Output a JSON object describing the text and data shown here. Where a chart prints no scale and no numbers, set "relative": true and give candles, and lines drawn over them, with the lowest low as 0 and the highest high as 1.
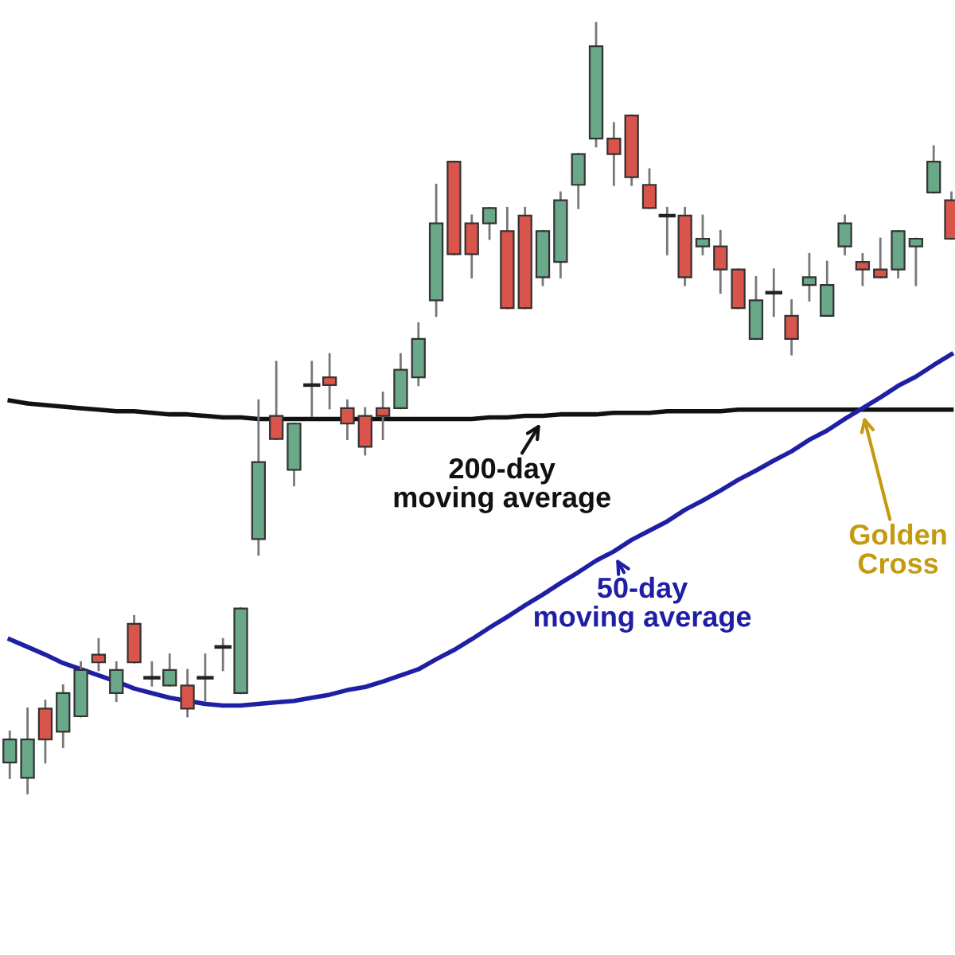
{
  "chart_data": {
    "type": "candlestick",
    "relative": true,
    "categories": [
      null,
      null,
      null,
      null,
      null,
      null,
      null,
      null,
      null,
      null,
      null,
      null,
      null,
      null,
      null,
      null,
      null,
      null,
      null,
      null,
      null,
      null,
      null,
      null,
      null,
      null,
      null,
      null,
      null,
      null,
      null,
      null,
      null,
      null,
      null,
      null,
      null,
      null,
      null,
      null,
      null,
      null,
      null,
      null,
      null,
      null,
      null,
      null,
      null,
      null,
      null,
      null,
      null,
      null
    ],
    "ohlc": [
      [
        0.04,
        0.08,
        0.02,
        0.07
      ],
      [
        0.02,
        0.11,
        0,
        0.07
      ],
      [
        0.11,
        0.12,
        0.04,
        0.07
      ],
      [
        0.08,
        0.14,
        0.06,
        0.13
      ],
      [
        0.1,
        0.17,
        0.1,
        0.16
      ],
      [
        0.18,
        0.2,
        0.16,
        0.17
      ],
      [
        0.13,
        0.17,
        0.12,
        0.16
      ],
      [
        0.22,
        0.23,
        0.17,
        0.17
      ],
      [
        0.15,
        0.17,
        0.14,
        0.15
      ],
      [
        0.14,
        0.18,
        0.14,
        0.16
      ],
      [
        0.14,
        0.16,
        0.1,
        0.11
      ],
      [
        0.15,
        0.18,
        0.12,
        0.15
      ],
      [
        0.19,
        0.2,
        0.16,
        0.19
      ],
      [
        0.13,
        0.24,
        0.13,
        0.24
      ],
      [
        0.33,
        0.51,
        0.31,
        0.43
      ],
      [
        0.49,
        0.56,
        0.46,
        0.46
      ],
      [
        0.42,
        0.48,
        0.4,
        0.48
      ],
      [
        0.53,
        0.56,
        0.49,
        0.53
      ],
      [
        0.54,
        0.57,
        0.5,
        0.53
      ],
      [
        0.5,
        0.51,
        0.46,
        0.48
      ],
      [
        0.49,
        0.5,
        0.44,
        0.45
      ],
      [
        0.5,
        0.52,
        0.46,
        0.49
      ],
      [
        0.5,
        0.57,
        0.5,
        0.55
      ],
      [
        0.54,
        0.61,
        0.53,
        0.59
      ],
      [
        0.64,
        0.79,
        0.62,
        0.74
      ],
      [
        0.82,
        0.82,
        0.7,
        0.7
      ],
      [
        0.74,
        0.75,
        0.67,
        0.7
      ],
      [
        0.74,
        0.76,
        0.72,
        0.76
      ],
      [
        0.73,
        0.76,
        0.63,
        0.63
      ],
      [
        0.75,
        0.76,
        0.63,
        0.63
      ],
      [
        0.67,
        0.73,
        0.66,
        0.73
      ],
      [
        0.69,
        0.78,
        0.67,
        0.77
      ],
      [
        0.79,
        0.83,
        0.76,
        0.83
      ],
      [
        0.85,
        1,
        0.84,
        0.97
      ],
      [
        0.85,
        0.87,
        0.79,
        0.83
      ],
      [
        0.88,
        0.88,
        0.79,
        0.8
      ],
      [
        0.79,
        0.81,
        0.76,
        0.76
      ],
      [
        0.75,
        0.76,
        0.7,
        0.75
      ],
      [
        0.75,
        0.76,
        0.66,
        0.67
      ],
      [
        0.71,
        0.75,
        0.7,
        0.72
      ],
      [
        0.71,
        0.73,
        0.65,
        0.68
      ],
      [
        0.68,
        0.68,
        0.63,
        0.63
      ],
      [
        0.59,
        0.67,
        0.59,
        0.64
      ],
      [
        0.65,
        0.68,
        0.62,
        0.65
      ],
      [
        0.62,
        0.64,
        0.57,
        0.59
      ],
      [
        0.66,
        0.7,
        0.64,
        0.67
      ],
      [
        0.62,
        0.69,
        0.62,
        0.66
      ],
      [
        0.71,
        0.75,
        0.7,
        0.74
      ],
      [
        0.69,
        0.7,
        0.66,
        0.68
      ],
      [
        0.68,
        0.72,
        0.67,
        0.67
      ],
      [
        0.68,
        0.73,
        0.67,
        0.73
      ],
      [
        0.71,
        0.72,
        0.66,
        0.72
      ],
      [
        0.78,
        0.84,
        0.78,
        0.82
      ],
      [
        0.77,
        0.78,
        0.72,
        0.72
      ]
    ],
    "colors": [
      "#6aa88a",
      "#6aa88a",
      "#d9544a",
      "#6aa88a",
      "#6aa88a",
      "#d9544a",
      "#6aa88a",
      "#d9544a",
      "#222222",
      "#6aa88a",
      "#d9544a",
      "#222222",
      "#222222",
      "#6aa88a",
      "#6aa88a",
      "#d9544a",
      "#6aa88a",
      "#222222",
      "#d9544a",
      "#d9544a",
      "#d9544a",
      "#d9544a",
      "#6aa88a",
      "#6aa88a",
      "#6aa88a",
      "#d9544a",
      "#d9544a",
      "#6aa88a",
      "#d9544a",
      "#d9544a",
      "#6aa88a",
      "#6aa88a",
      "#6aa88a",
      "#6aa88a",
      "#d9544a",
      "#d9544a",
      "#d9544a",
      "#222222",
      "#d9544a",
      "#6aa88a",
      "#d9544a",
      "#d9544a",
      "#6aa88a",
      "#222222",
      "#d9544a",
      "#6aa88a",
      "#6aa88a",
      "#6aa88a",
      "#d9544a",
      "#d9544a",
      "#6aa88a",
      "#6aa88a",
      "#6aa88a",
      "#d9544a"
    ],
    "series": [
      {
        "type": "line",
        "color": "#111111",
        "values": [
          0.51,
          0.506,
          0.504,
          0.502,
          0.5,
          0.498,
          0.496,
          0.496,
          0.494,
          0.492,
          0.492,
          0.49,
          0.488,
          0.488,
          0.486,
          0.486,
          0.486,
          0.486,
          0.486,
          0.486,
          0.486,
          0.486,
          0.486,
          0.486,
          0.486,
          0.486,
          0.486,
          0.488,
          0.488,
          0.49,
          0.49,
          0.492,
          0.492,
          0.492,
          0.494,
          0.494,
          0.494,
          0.496,
          0.496,
          0.496,
          0.496,
          0.498,
          0.498,
          0.498,
          0.498,
          0.498,
          0.498,
          0.498,
          0.498,
          0.498,
          0.498,
          0.498,
          0.498,
          0.498
        ]
      },
      {
        "type": "line",
        "color": "#1f1fa6",
        "values": [
          0.2,
          0.19,
          0.18,
          0.169,
          0.161,
          0.153,
          0.145,
          0.136,
          0.13,
          0.124,
          0.12,
          0.116,
          0.114,
          0.114,
          0.116,
          0.118,
          0.12,
          0.124,
          0.128,
          0.134,
          0.138,
          0.145,
          0.153,
          0.161,
          0.174,
          0.186,
          0.2,
          0.215,
          0.229,
          0.244,
          0.258,
          0.273,
          0.287,
          0.302,
          0.314,
          0.329,
          0.341,
          0.353,
          0.368,
          0.38,
          0.393,
          0.407,
          0.419,
          0.432,
          0.444,
          0.459,
          0.471,
          0.486,
          0.5,
          0.514,
          0.529,
          0.541,
          0.556,
          0.57
        ]
      }
    ],
    "annotations": [
      "200-day\nmoving average",
      "50-day\nmoving average",
      "Golden\nCross"
    ]
  }
}
